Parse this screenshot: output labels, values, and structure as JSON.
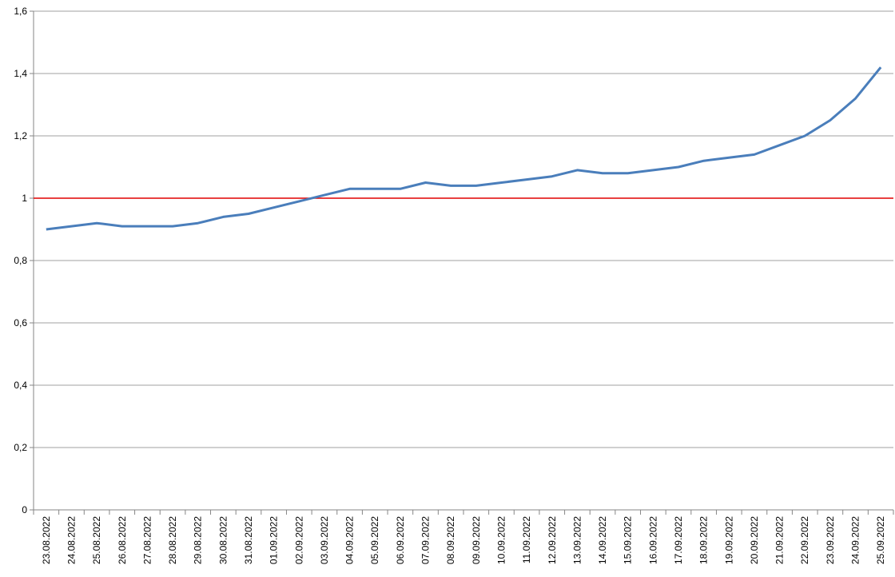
{
  "chart_data": {
    "type": "line",
    "categories": [
      "23.08.2022",
      "24.08.2022",
      "25.08.2022",
      "26.08.2022",
      "27.08.2022",
      "28.08.2022",
      "29.08.2022",
      "30.08.2022",
      "31.08.2022",
      "01.09.2022",
      "02.09.2022",
      "03.09.2022",
      "04.09.2022",
      "05.09.2022",
      "06.09.2022",
      "07.09.2022",
      "08.09.2022",
      "09.09.2022",
      "10.09.2022",
      "11.09.2022",
      "12.09.2022",
      "13.09.2022",
      "14.09.2022",
      "15.09.2022",
      "16.09.2022",
      "17.09.2022",
      "18.09.2022",
      "19.09.2022",
      "20.09.2022",
      "21.09.2022",
      "22.09.2022",
      "23.09.2022",
      "24.09.2022",
      "25.09.2022"
    ],
    "series": [
      {
        "color": "#4a7ebb",
        "values": [
          0.9,
          0.91,
          0.92,
          0.91,
          0.91,
          0.91,
          0.92,
          0.94,
          0.95,
          0.97,
          0.99,
          1.01,
          1.03,
          1.03,
          1.03,
          1.05,
          1.04,
          1.04,
          1.05,
          1.06,
          1.07,
          1.09,
          1.08,
          1.08,
          1.09,
          1.1,
          1.12,
          1.13,
          1.14,
          1.17,
          1.2,
          1.25,
          1.32,
          1.42
        ]
      }
    ],
    "reference_line": {
      "value": 1,
      "color": "#e00000"
    },
    "ylim": [
      0,
      1.6
    ],
    "yticks": [
      0,
      {
        "value": 0.2,
        "label": "0,2"
      },
      {
        "value": 0.4,
        "label": "0,4"
      },
      {
        "value": 0.6,
        "label": "0,6"
      },
      {
        "value": 0.8,
        "label": "0,8"
      },
      1,
      {
        "value": 1.2,
        "label": "1,2"
      },
      {
        "value": 1.4,
        "label": "1,4"
      },
      {
        "value": 1.6,
        "label": "1,6"
      }
    ],
    "grid": true
  }
}
